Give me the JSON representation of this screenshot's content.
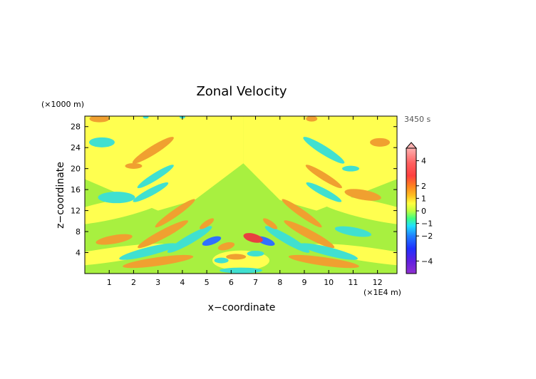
{
  "chart_data": {
    "type": "heatmap",
    "title": "Zonal Velocity",
    "xlabel": "x−coordinate",
    "ylabel": "z−coordinate",
    "x_unit": "(×1E4 m)",
    "y_unit": "(×1000 m)",
    "time_label": "3450 s",
    "xlim": [
      0,
      12.8
    ],
    "ylim": [
      0,
      30
    ],
    "x_ticks": [
      "1",
      "2",
      "3",
      "4",
      "5",
      "6",
      "7",
      "8",
      "9",
      "10",
      "11",
      "12"
    ],
    "y_ticks": [
      "4",
      "8",
      "12",
      "16",
      "20",
      "24",
      "28"
    ],
    "colorbar": {
      "range": [
        -5,
        5
      ],
      "tick_labels": [
        "4",
        "2",
        "1",
        "0",
        "−1",
        "−2",
        "−4"
      ],
      "tick_values": [
        4,
        2,
        1,
        0,
        -1,
        -2,
        -4
      ]
    },
    "colors": {
      "background_field": "#a8f040",
      "yellow": "#ffff50",
      "orange": "#f0a030",
      "cyan": "#40e0d0",
      "blue": "#3070ff",
      "red": "#e84040"
    }
  }
}
